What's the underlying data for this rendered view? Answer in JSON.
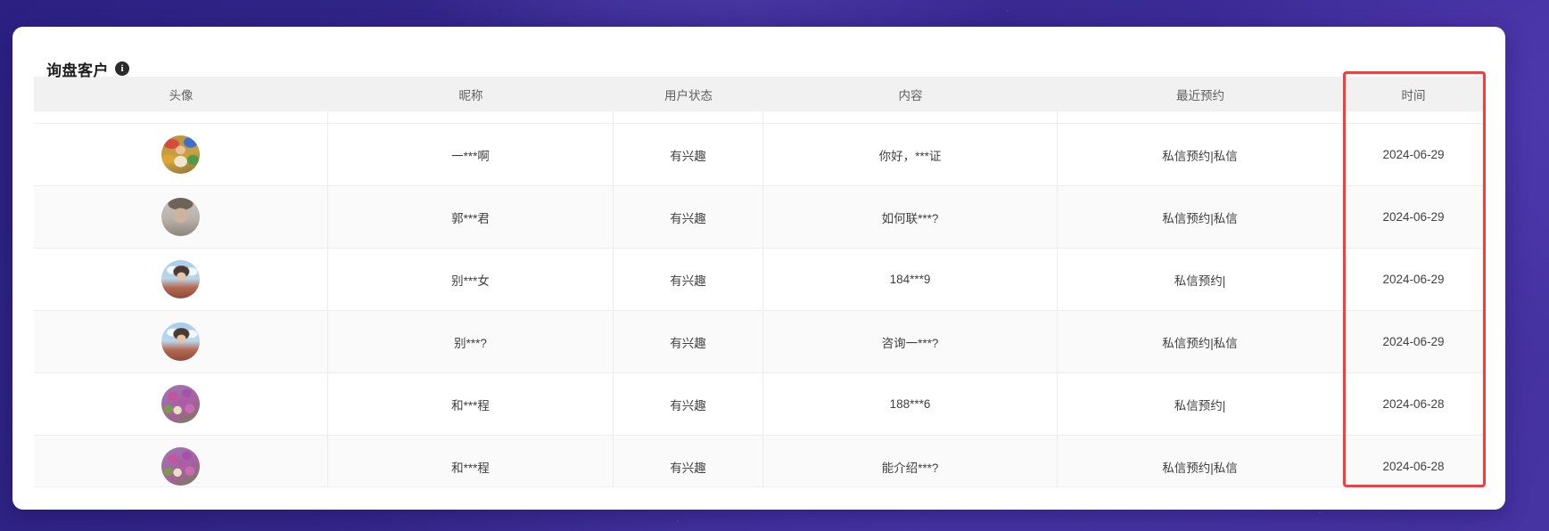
{
  "panel": {
    "title": "询盘客户",
    "info_icon": {
      "glyph": "i",
      "name": "info-icon"
    }
  },
  "table": {
    "columns": [
      {
        "key": "avatar",
        "label": "头像"
      },
      {
        "key": "nickname",
        "label": "昵称"
      },
      {
        "key": "status",
        "label": "用户状态"
      },
      {
        "key": "content",
        "label": "内容"
      },
      {
        "key": "appointment",
        "label": "最近预约"
      },
      {
        "key": "time",
        "label": "时间"
      }
    ],
    "rows": [
      {
        "avatar": "festival-person",
        "nickname": "一***啊",
        "status": "有兴趣",
        "content": "你好，***证",
        "appointment": "私信预约|私信",
        "time": "2024-06-29"
      },
      {
        "avatar": "gray-portrait",
        "nickname": "郭***君",
        "status": "有兴趣",
        "content": "如何联***?",
        "appointment": "私信预约|私信",
        "time": "2024-06-29"
      },
      {
        "avatar": "woman-sky",
        "nickname": "别***女",
        "status": "有兴趣",
        "content": "184***9",
        "appointment": "私信预约|",
        "time": "2024-06-29"
      },
      {
        "avatar": "woman-sky",
        "nickname": "别***?",
        "status": "有兴趣",
        "content": "咨询一***?",
        "appointment": "私信预约|私信",
        "time": "2024-06-29"
      },
      {
        "avatar": "flowers",
        "nickname": "和***程",
        "status": "有兴趣",
        "content": "188***6",
        "appointment": "私信预约|",
        "time": "2024-06-28"
      },
      {
        "avatar": "flowers",
        "nickname": "和***程",
        "status": "有兴趣",
        "content": "能介绍***?",
        "appointment": "私信预约|私信",
        "time": "2024-06-28"
      }
    ],
    "highlight": {
      "column": "time",
      "color": "#f63c3c"
    }
  },
  "colors": {
    "background_top": "#2c2183",
    "background_bottom": "#4734a3",
    "card": "#ffffff",
    "header_bg": "#f1f1f1",
    "zebra_row": "#fafafa",
    "highlight_red": "#f63c3c"
  }
}
